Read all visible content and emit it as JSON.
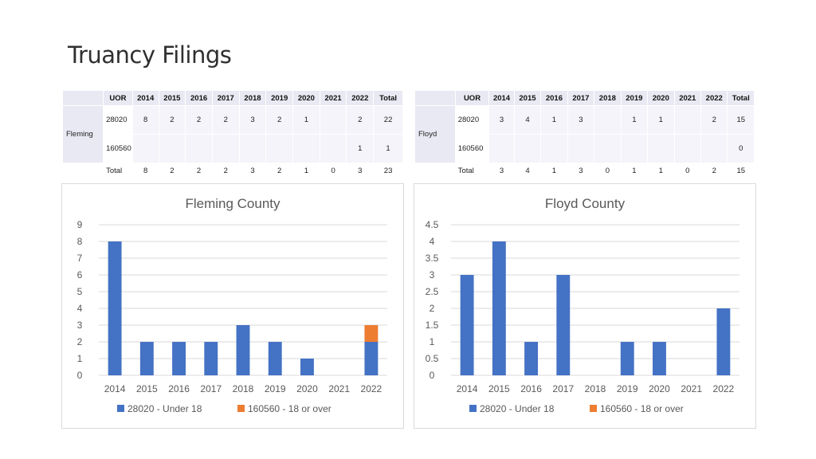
{
  "page": {
    "title": "Truancy Filings"
  },
  "tables": [
    {
      "county": "Fleming",
      "headers": [
        "UOR",
        "2014",
        "2015",
        "2016",
        "2017",
        "2018",
        "2019",
        "2020",
        "2021",
        "2022",
        "Total"
      ],
      "rows": [
        [
          "28020",
          "8",
          "2",
          "2",
          "2",
          "3",
          "2",
          "1",
          "",
          "2",
          "22"
        ],
        [
          "160560",
          "",
          "",
          "",
          "",
          "",
          "",
          "",
          "",
          "1",
          "1"
        ]
      ],
      "total_row": [
        "Total",
        "8",
        "2",
        "2",
        "2",
        "3",
        "2",
        "1",
        "0",
        "3",
        "23"
      ]
    },
    {
      "county": "Floyd",
      "headers": [
        "UOR",
        "2014",
        "2015",
        "2016",
        "2017",
        "2018",
        "2019",
        "2020",
        "2021",
        "2022",
        "Total"
      ],
      "rows": [
        [
          "28020",
          "3",
          "4",
          "1",
          "3",
          "",
          "1",
          "1",
          "",
          "2",
          "15"
        ],
        [
          "160560",
          "",
          "",
          "",
          "",
          "",
          "",
          "",
          "",
          "",
          "0"
        ]
      ],
      "total_row": [
        "Total",
        "3",
        "4",
        "1",
        "3",
        "0",
        "1",
        "1",
        "0",
        "2",
        "15"
      ]
    }
  ],
  "chart_data": [
    {
      "type": "bar",
      "stacked": true,
      "title": "Fleming County",
      "categories": [
        "2014",
        "2015",
        "2016",
        "2017",
        "2018",
        "2019",
        "2020",
        "2021",
        "2022"
      ],
      "series": [
        {
          "name": "28020 - Under 18",
          "color": "#4472c4",
          "values": [
            8,
            2,
            2,
            2,
            3,
            2,
            1,
            0,
            2
          ]
        },
        {
          "name": "160560 - 18 or over",
          "color": "#ed7d31",
          "values": [
            0,
            0,
            0,
            0,
            0,
            0,
            0,
            0,
            1
          ]
        }
      ],
      "ylim": [
        0,
        9
      ],
      "yticks": [
        "0",
        "1",
        "2",
        "3",
        "4",
        "5",
        "6",
        "7",
        "8",
        "9"
      ],
      "grid": true,
      "legend": "bottom"
    },
    {
      "type": "bar",
      "stacked": true,
      "title": "Floyd County",
      "categories": [
        "2014",
        "2015",
        "2016",
        "2017",
        "2018",
        "2019",
        "2020",
        "2021",
        "2022"
      ],
      "series": [
        {
          "name": "28020 - Under 18",
          "color": "#4472c4",
          "values": [
            3,
            4,
            1,
            3,
            0,
            1,
            1,
            0,
            2
          ]
        },
        {
          "name": "160560 - 18 or over",
          "color": "#ed7d31",
          "values": [
            0,
            0,
            0,
            0,
            0,
            0,
            0,
            0,
            0
          ]
        }
      ],
      "ylim": [
        0,
        4.5
      ],
      "yticks": [
        "0",
        "0.5",
        "1",
        "1.5",
        "2",
        "2.5",
        "3",
        "3.5",
        "4",
        "4.5"
      ],
      "grid": true,
      "legend": "bottom"
    }
  ]
}
